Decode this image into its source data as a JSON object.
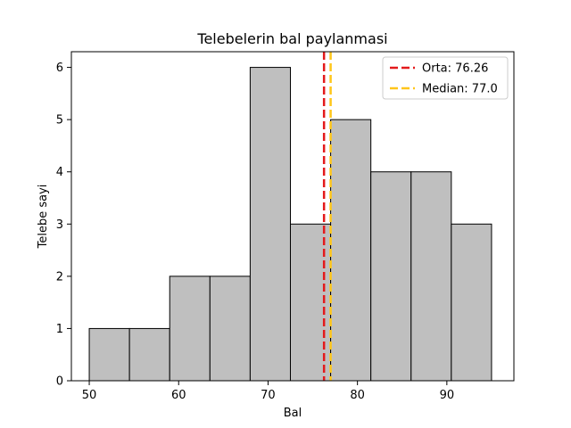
{
  "chart_data": {
    "type": "bar",
    "title": "Telebelerin bal paylanmasi",
    "xlabel": "Bal",
    "ylabel": "Telebe sayi",
    "xlim": [
      48,
      97.5
    ],
    "ylim": [
      0,
      6.3
    ],
    "xticks": [
      50,
      60,
      70,
      80,
      90
    ],
    "yticks": [
      0,
      1,
      2,
      3,
      4,
      5,
      6
    ],
    "bin_edges": [
      50,
      54.5,
      59,
      63.5,
      68,
      72.5,
      77,
      81.5,
      86,
      90.5,
      95
    ],
    "counts": [
      1,
      1,
      2,
      2,
      6,
      3,
      5,
      4,
      4,
      3
    ],
    "bar_color": "#bfbfbf",
    "edge_color": "#000000",
    "grid": false,
    "lines": [
      {
        "label": "Orta: 76.26",
        "x": 76.26,
        "color": "#e31a1c",
        "style": "dashed"
      },
      {
        "label": "Median: 77.0",
        "x": 77.0,
        "color": "#ffc61a",
        "style": "dashed"
      }
    ],
    "legend_position": "top-right"
  }
}
